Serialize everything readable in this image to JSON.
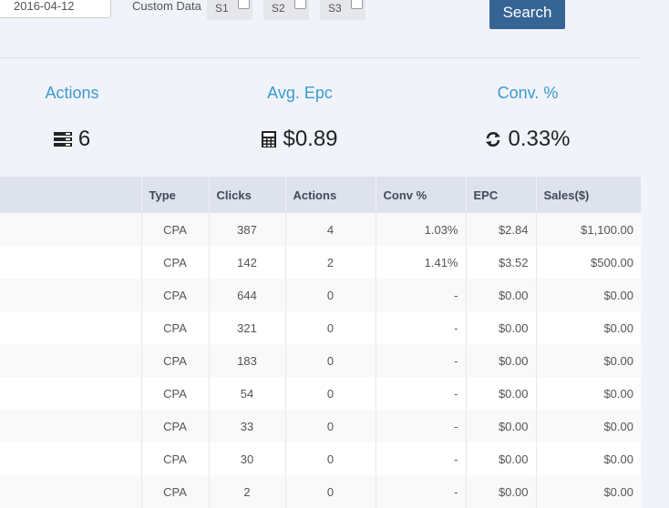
{
  "filters": {
    "date_value": "2016-04-12",
    "custom_data_label": "Custom Data",
    "subids": [
      {
        "label": "S1",
        "checked": false
      },
      {
        "label": "S2",
        "checked": false
      },
      {
        "label": "S3",
        "checked": false
      }
    ],
    "search_label": "Search"
  },
  "stats": [
    {
      "title": "Actions",
      "value": "6",
      "icon": "server-icon"
    },
    {
      "title": "Avg. Epc",
      "value": "$0.89",
      "icon": "calculator-icon"
    },
    {
      "title": "Conv. %",
      "value": "0.33%",
      "icon": "refresh-icon"
    }
  ],
  "table": {
    "columns": [
      "",
      "Type",
      "Clicks",
      "Actions",
      "Conv %",
      "EPC",
      "Sales($)"
    ],
    "rows": [
      [
        "",
        "CPA",
        "387",
        "4",
        "1.03%",
        "$2.84",
        "$1,100.00"
      ],
      [
        "",
        "CPA",
        "142",
        "2",
        "1.41%",
        "$3.52",
        "$500.00"
      ],
      [
        "",
        "CPA",
        "644",
        "0",
        "-",
        "$0.00",
        "$0.00"
      ],
      [
        "",
        "CPA",
        "321",
        "0",
        "-",
        "$0.00",
        "$0.00"
      ],
      [
        "",
        "CPA",
        "183",
        "0",
        "-",
        "$0.00",
        "$0.00"
      ],
      [
        "",
        "CPA",
        "54",
        "0",
        "-",
        "$0.00",
        "$0.00"
      ],
      [
        "",
        "CPA",
        "33",
        "0",
        "-",
        "$0.00",
        "$0.00"
      ],
      [
        "",
        "CPA",
        "30",
        "0",
        "-",
        "$0.00",
        "$0.00"
      ],
      [
        "",
        "CPA",
        "2",
        "0",
        "-",
        "$0.00",
        "$0.00"
      ]
    ]
  }
}
